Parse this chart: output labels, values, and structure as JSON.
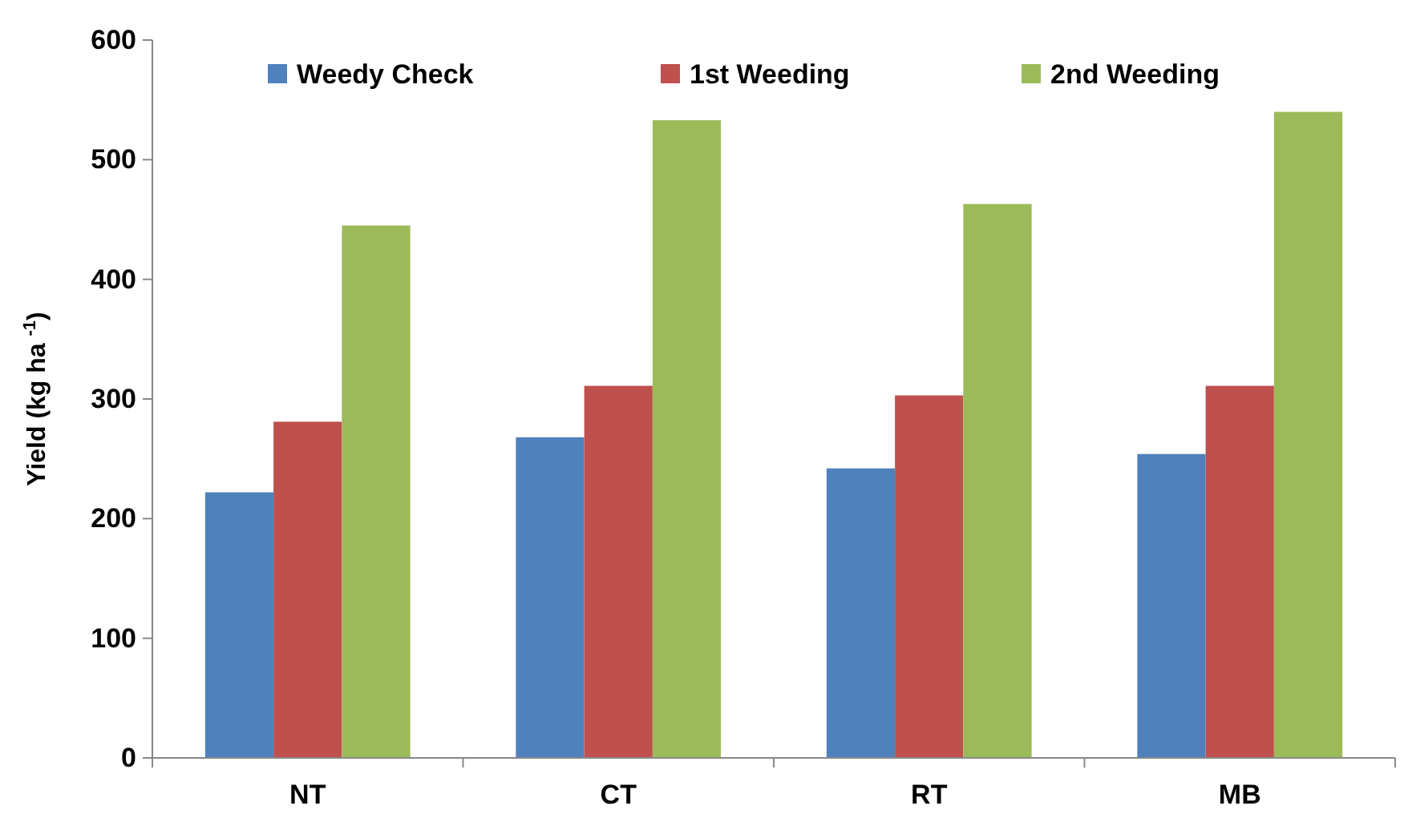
{
  "chart_data": {
    "type": "bar",
    "ylabel": "Yield (kg ha $^{-1}$)",
    "categories": [
      "NT",
      "CT",
      "RT",
      "MB"
    ],
    "series": [
      {
        "name": "Weedy Check",
        "color": "#4f81bd",
        "values": [
          222,
          268,
          242,
          254
        ]
      },
      {
        "name": "1st Weeding",
        "color": "#c0504d",
        "values": [
          281,
          311,
          303,
          311
        ]
      },
      {
        "name": "2nd Weeding",
        "color": "#9bbb59",
        "values": [
          445,
          533,
          463,
          540
        ]
      }
    ],
    "ylim": [
      0,
      600
    ],
    "yticks": [
      0,
      100,
      200,
      300,
      400,
      500,
      600
    ],
    "grid": false,
    "legend": "top"
  }
}
